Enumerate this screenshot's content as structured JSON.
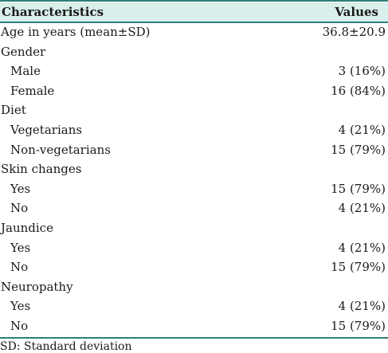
{
  "table": {
    "headers": {
      "characteristics": "Characteristics",
      "values": "Values"
    },
    "rows": [
      {
        "label": "Age in years (mean±SD)",
        "value": "36.8±20.9",
        "indent": 0
      },
      {
        "label": "Gender",
        "value": "",
        "indent": 0
      },
      {
        "label": "Male",
        "value": "3 (16%)",
        "indent": 1
      },
      {
        "label": "Female",
        "value": "16 (84%)",
        "indent": 1
      },
      {
        "label": "Diet",
        "value": "",
        "indent": 0
      },
      {
        "label": "Vegetarians",
        "value": "4 (21%)",
        "indent": 1
      },
      {
        "label": "Non-vegetarians",
        "value": "15 (79%)",
        "indent": 1
      },
      {
        "label": "Skin changes",
        "value": "",
        "indent": 0
      },
      {
        "label": "Yes",
        "value": "15 (79%)",
        "indent": 1
      },
      {
        "label": "No",
        "value": "4 (21%)",
        "indent": 1
      },
      {
        "label": "Jaundice",
        "value": "",
        "indent": 0
      },
      {
        "label": "Yes",
        "value": "4 (21%)",
        "indent": 1
      },
      {
        "label": "No",
        "value": "15 (79%)",
        "indent": 1
      },
      {
        "label": "Neuropathy",
        "value": "",
        "indent": 0
      },
      {
        "label": "Yes",
        "value": "4 (21%)",
        "indent": 1
      },
      {
        "label": "No",
        "value": "15 (79%)",
        "indent": 1
      }
    ],
    "footnote": "SD: Standard deviation"
  }
}
